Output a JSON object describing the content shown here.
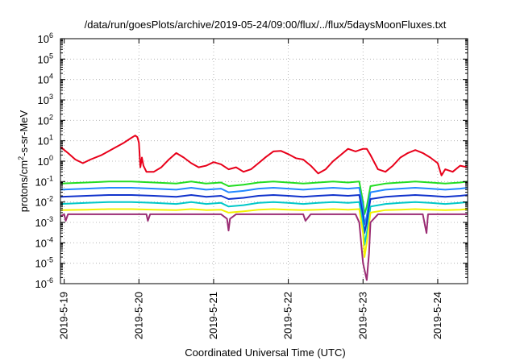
{
  "chart_data": {
    "type": "line",
    "title": "/data/run/goesPlots/archive/2019-05-24/09:00/flux/../flux/5daysMoonFluxes.txt",
    "xlabel": "Coordinated Universal Time (UTC)",
    "ylabel": "protons/cm2-s-sr-MeV",
    "ylabel_parts": {
      "pre": "protons/cm",
      "sup": "2",
      "post": "-s-sr-MeV"
    },
    "yscale": "log",
    "ylim": [
      1e-06,
      1000000.0
    ],
    "y_tick_labels": [
      {
        "exp": -6,
        "label": "10-6"
      },
      {
        "exp": -5,
        "label": "10-5"
      },
      {
        "exp": -4,
        "label": "10-4"
      },
      {
        "exp": -3,
        "label": "10-3"
      },
      {
        "exp": -2,
        "label": "10-2"
      },
      {
        "exp": -1,
        "label": "10-1"
      },
      {
        "exp": 0,
        "label": "100"
      },
      {
        "exp": 1,
        "label": "101"
      },
      {
        "exp": 2,
        "label": "102"
      },
      {
        "exp": 3,
        "label": "103"
      },
      {
        "exp": 4,
        "label": "104"
      },
      {
        "exp": 5,
        "label": "105"
      },
      {
        "exp": 6,
        "label": "106"
      }
    ],
    "xlim": [
      -0.05,
      5.4
    ],
    "x_ticks": [
      {
        "day": 0,
        "label": "2019-5-19"
      },
      {
        "day": 1,
        "label": "2019-5-20"
      },
      {
        "day": 2,
        "label": "2019-5-21"
      },
      {
        "day": 3,
        "label": "2019-5-22"
      },
      {
        "day": 4,
        "label": "2019-5-23"
      },
      {
        "day": 5,
        "label": "2019-5-24"
      }
    ],
    "grid": true,
    "series": [
      {
        "color": "#e8001a",
        "x": [
          -0.05,
          0.05,
          0.15,
          0.25,
          0.35,
          0.5,
          0.65,
          0.8,
          0.9,
          0.95,
          0.98,
          1.0,
          1.02,
          1.04,
          1.06,
          1.1,
          1.2,
          1.3,
          1.4,
          1.5,
          1.6,
          1.7,
          1.8,
          1.9,
          2.0,
          2.1,
          2.2,
          2.3,
          2.4,
          2.5,
          2.6,
          2.7,
          2.8,
          2.9,
          3.0,
          3.1,
          3.2,
          3.3,
          3.4,
          3.5,
          3.6,
          3.7,
          3.8,
          3.9,
          4.0,
          4.05,
          4.1,
          4.2,
          4.3,
          4.4,
          4.5,
          4.6,
          4.7,
          4.8,
          4.9,
          5.0,
          5.05,
          5.1,
          5.2,
          5.3,
          5.4
        ],
        "y": [
          5,
          2.5,
          1.2,
          0.8,
          1.2,
          2,
          4,
          8,
          14,
          18,
          15,
          8,
          0.5,
          1.5,
          0.6,
          0.3,
          0.3,
          0.5,
          1.2,
          2.5,
          1.5,
          0.8,
          0.5,
          0.6,
          0.9,
          0.7,
          0.4,
          0.5,
          0.3,
          0.4,
          0.8,
          1.6,
          3,
          3.2,
          2.2,
          1.4,
          1.2,
          0.6,
          0.25,
          0.4,
          1,
          2,
          4,
          3,
          4,
          4,
          2,
          0.4,
          0.3,
          0.6,
          1.5,
          2.5,
          3.5,
          2.5,
          1.5,
          0.8,
          0.2,
          0.4,
          0.3,
          0.6,
          0.5
        ]
      },
      {
        "color": "#22dd22",
        "x": [
          -0.05,
          0.3,
          0.6,
          0.9,
          1.2,
          1.5,
          1.7,
          1.9,
          2.1,
          2.2,
          2.4,
          2.6,
          2.8,
          3.0,
          3.2,
          3.4,
          3.6,
          3.8,
          3.95,
          4.0,
          4.02,
          4.05,
          4.1,
          4.3,
          4.5,
          4.7,
          4.9,
          5.1,
          5.3,
          5.4
        ],
        "y": [
          0.08,
          0.09,
          0.1,
          0.1,
          0.09,
          0.08,
          0.1,
          0.08,
          0.09,
          0.06,
          0.07,
          0.09,
          0.1,
          0.09,
          0.08,
          0.09,
          0.1,
          0.09,
          0.1,
          0.01,
          0.0025,
          0.006,
          0.06,
          0.08,
          0.09,
          0.1,
          0.09,
          0.08,
          0.09,
          0.1
        ]
      },
      {
        "color": "#2288ff",
        "x": [
          -0.05,
          0.3,
          0.6,
          0.9,
          1.2,
          1.5,
          1.7,
          1.9,
          2.1,
          2.2,
          2.4,
          2.6,
          2.8,
          3.0,
          3.2,
          3.4,
          3.6,
          3.8,
          3.95,
          4.0,
          4.02,
          4.05,
          4.1,
          4.3,
          4.5,
          4.7,
          4.9,
          5.1,
          5.3,
          5.4
        ],
        "y": [
          0.04,
          0.045,
          0.05,
          0.05,
          0.045,
          0.04,
          0.05,
          0.04,
          0.045,
          0.03,
          0.035,
          0.045,
          0.05,
          0.045,
          0.04,
          0.045,
          0.05,
          0.045,
          0.05,
          0.005,
          0.0008,
          0.002,
          0.03,
          0.04,
          0.045,
          0.05,
          0.045,
          0.04,
          0.045,
          0.05
        ]
      },
      {
        "color": "#1133cc",
        "x": [
          -0.05,
          0.3,
          0.6,
          0.9,
          1.2,
          1.5,
          1.7,
          1.9,
          2.1,
          2.2,
          2.4,
          2.6,
          2.8,
          3.0,
          3.2,
          3.4,
          3.6,
          3.8,
          3.95,
          4.0,
          4.02,
          4.05,
          4.1,
          4.3,
          4.5,
          4.7,
          4.9,
          5.1,
          5.3,
          5.4
        ],
        "y": [
          0.018,
          0.02,
          0.022,
          0.022,
          0.02,
          0.018,
          0.022,
          0.018,
          0.02,
          0.014,
          0.016,
          0.02,
          0.022,
          0.02,
          0.018,
          0.02,
          0.022,
          0.02,
          0.022,
          0.002,
          0.0003,
          0.001,
          0.014,
          0.018,
          0.02,
          0.022,
          0.02,
          0.018,
          0.02,
          0.022
        ]
      },
      {
        "color": "#00c8c8",
        "x": [
          -0.05,
          0.3,
          0.6,
          0.9,
          1.2,
          1.5,
          1.7,
          1.9,
          2.1,
          2.2,
          2.4,
          2.6,
          2.8,
          3.0,
          3.2,
          3.4,
          3.6,
          3.8,
          3.95,
          4.0,
          4.02,
          4.05,
          4.1,
          4.3,
          4.5,
          4.7,
          4.9,
          5.1,
          5.3,
          5.4
        ],
        "y": [
          0.008,
          0.009,
          0.01,
          0.01,
          0.009,
          0.008,
          0.01,
          0.008,
          0.009,
          0.006,
          0.007,
          0.009,
          0.01,
          0.009,
          0.008,
          0.009,
          0.01,
          0.009,
          0.01,
          0.0008,
          8e-05,
          0.0003,
          0.006,
          0.008,
          0.009,
          0.01,
          0.009,
          0.008,
          0.009,
          0.01
        ]
      },
      {
        "color": "#f2f200",
        "x": [
          -0.05,
          0.3,
          0.6,
          0.9,
          1.2,
          1.5,
          1.7,
          1.9,
          2.1,
          2.2,
          2.4,
          2.6,
          2.8,
          3.0,
          3.2,
          3.4,
          3.6,
          3.8,
          3.95,
          4.0,
          4.02,
          4.05,
          4.1,
          4.3,
          4.5,
          4.7,
          4.9,
          5.1,
          5.3,
          5.4
        ],
        "y": [
          0.004,
          0.0042,
          0.0045,
          0.0045,
          0.0042,
          0.004,
          0.0045,
          0.004,
          0.0042,
          0.003,
          0.0035,
          0.0042,
          0.0045,
          0.0042,
          0.004,
          0.0042,
          0.0045,
          0.0042,
          0.0045,
          0.0003,
          2e-05,
          0.0001,
          0.003,
          0.004,
          0.0042,
          0.0045,
          0.0042,
          0.004,
          0.0042,
          0.0045
        ]
      },
      {
        "color": "#9b2d74",
        "x": [
          -0.05,
          0.0,
          0.02,
          0.05,
          0.1,
          0.3,
          0.6,
          0.9,
          1.1,
          1.12,
          1.15,
          1.3,
          1.6,
          1.9,
          2.1,
          2.18,
          2.2,
          2.22,
          2.3,
          2.6,
          2.9,
          3.1,
          3.2,
          3.23,
          3.3,
          3.6,
          3.9,
          3.95,
          4.0,
          4.05,
          4.08,
          4.1,
          4.2,
          4.5,
          4.8,
          4.85,
          4.87,
          4.9,
          5.2,
          5.4
        ],
        "y": [
          0.002,
          0.0025,
          0.0012,
          0.0025,
          0.0025,
          0.0025,
          0.0025,
          0.0025,
          0.0025,
          0.0012,
          0.0025,
          0.0025,
          0.0025,
          0.0025,
          0.0025,
          0.0015,
          0.0004,
          0.0015,
          0.0025,
          0.0025,
          0.0025,
          0.0025,
          0.0025,
          0.0012,
          0.0025,
          0.0025,
          0.0025,
          0.001,
          1e-05,
          1.5e-06,
          3e-05,
          0.001,
          0.0025,
          0.0025,
          0.0025,
          0.0003,
          0.0025,
          0.0025,
          0.0025,
          0.0025
        ]
      }
    ]
  }
}
